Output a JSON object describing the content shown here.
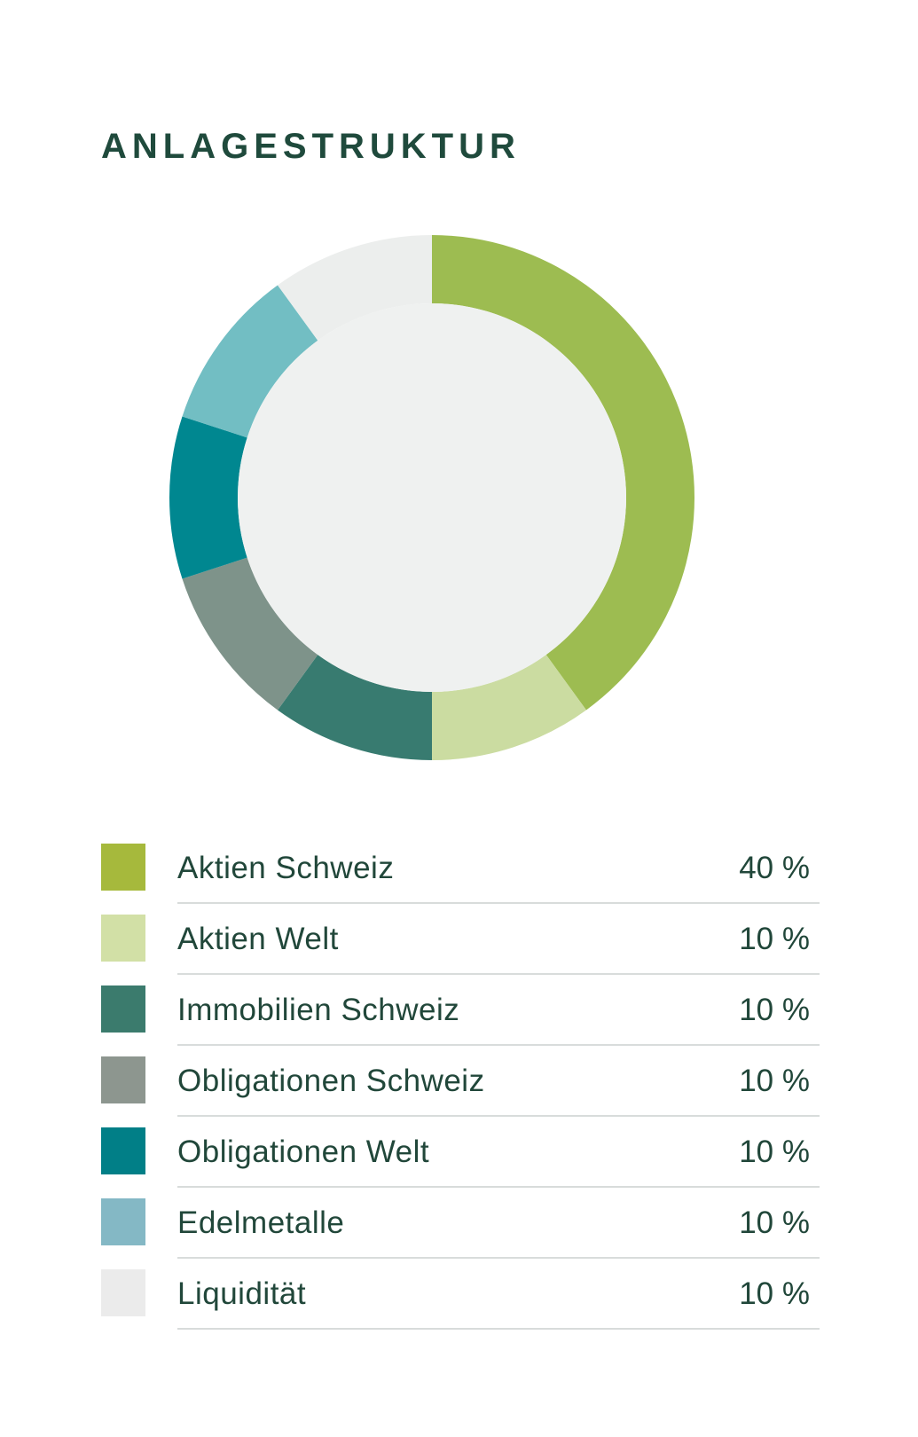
{
  "title": "ANLAGESTRUKTUR",
  "chart_data": {
    "type": "pie",
    "variant": "donut",
    "title": "ANLAGESTRUKTUR",
    "unit": "%",
    "center_color": "#eff1f0",
    "categories": [
      "Aktien Schweiz",
      "Aktien Welt",
      "Immobilien Schweiz",
      "Obligationen Schweiz",
      "Obligationen Welt",
      "Edelmetalle",
      "Liquidität"
    ],
    "values": [
      40,
      10,
      10,
      10,
      10,
      10,
      10
    ],
    "slice_colors": [
      "#9dbc51",
      "#cbdca1",
      "#387b70",
      "#7e938a",
      "#008790",
      "#72bec3",
      "#eceeed"
    ],
    "swatch_colors": [
      "#a6b93c",
      "#d2e0a6",
      "#3b7b6d",
      "#8d968f",
      "#017f87",
      "#84b8c5",
      "#ebebeb"
    ]
  },
  "legend": [
    {
      "label": "Aktien Schweiz",
      "value": "40 %"
    },
    {
      "label": "Aktien Welt",
      "value": "10 %"
    },
    {
      "label": "Immobilien Schweiz",
      "value": "10 %"
    },
    {
      "label": "Obligationen Schweiz",
      "value": "10 %"
    },
    {
      "label": "Obligationen Welt",
      "value": "10 %"
    },
    {
      "label": "Edelmetalle",
      "value": "10 %"
    },
    {
      "label": "Liquidität",
      "value": "10 %"
    }
  ]
}
